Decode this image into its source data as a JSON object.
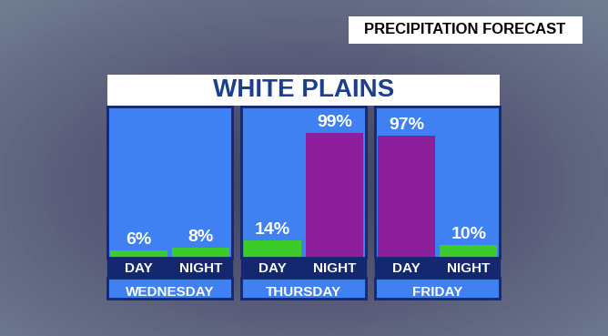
{
  "header": "PRECIPITATION FORECAST",
  "title": "WHITE PLAINS",
  "chart_data": [
    {
      "type": "bar",
      "xlabel": "WEDNESDAY",
      "categories": [
        "DAY",
        "NIGHT"
      ],
      "values": [
        6,
        8
      ],
      "value_labels": [
        "6%",
        "8%"
      ],
      "colors": [
        "#3ccc2a",
        "#3ccc2a"
      ],
      "ylim": [
        0,
        120
      ],
      "yticks": [],
      "tick_labels": "x",
      "data_labels": true
    },
    {
      "type": "bar",
      "xlabel": "THURSDAY",
      "categories": [
        "DAY",
        "NIGHT"
      ],
      "values": [
        14,
        99
      ],
      "value_labels": [
        "14%",
        "99%"
      ],
      "colors": [
        "#3ccc2a",
        "#8e1f9c"
      ],
      "ylim": [
        0,
        120
      ],
      "yticks": [],
      "tick_labels": "x",
      "data_labels": true
    },
    {
      "type": "bar",
      "xlabel": "FRIDAY",
      "categories": [
        "DAY",
        "NIGHT"
      ],
      "values": [
        97,
        10
      ],
      "value_labels": [
        "97%",
        "10%"
      ],
      "colors": [
        "#8e1f9c",
        "#3ccc2a"
      ],
      "ylim": [
        0,
        120
      ],
      "yticks": [],
      "tick_labels": "x",
      "data_labels": true
    }
  ]
}
